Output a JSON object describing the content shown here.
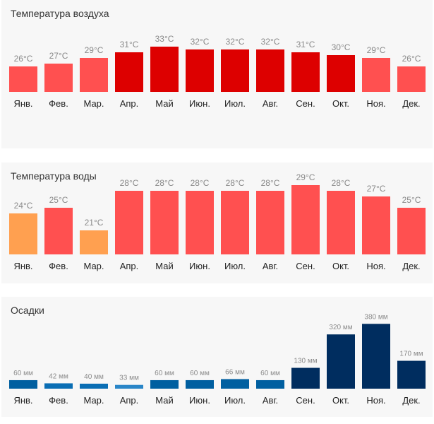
{
  "chart_data": [
    {
      "type": "bar",
      "title": "Температура воздуха",
      "categories": [
        "Янв.",
        "Фев.",
        "Мар.",
        "Апр.",
        "Май",
        "Июн.",
        "Июл.",
        "Авг.",
        "Сен.",
        "Окт.",
        "Ноя.",
        "Дек."
      ],
      "values": [
        26,
        27,
        29,
        31,
        33,
        32,
        32,
        32,
        31,
        30,
        29,
        26
      ],
      "labels": [
        "26°C",
        "27°C",
        "29°C",
        "31°C",
        "33°C",
        "32°C",
        "32°C",
        "32°C",
        "31°C",
        "30°C",
        "29°C",
        "26°C"
      ],
      "unit": "°C",
      "colors": [
        "#ff5050",
        "#ff5050",
        "#ff5050",
        "#dd0000",
        "#dd0000",
        "#dd0000",
        "#dd0000",
        "#dd0000",
        "#dd0000",
        "#dd0000",
        "#ff5050",
        "#ff5050"
      ]
    },
    {
      "type": "bar",
      "title": "Температура воды",
      "categories": [
        "Янв.",
        "Фев.",
        "Мар.",
        "Апр.",
        "Май",
        "Июн.",
        "Июл.",
        "Авг.",
        "Сен.",
        "Окт.",
        "Ноя.",
        "Дек."
      ],
      "values": [
        24,
        25,
        21,
        28,
        28,
        28,
        28,
        28,
        29,
        28,
        27,
        25
      ],
      "labels": [
        "24°C",
        "25°C",
        "21°C",
        "28°C",
        "28°C",
        "28°C",
        "28°C",
        "28°C",
        "29°C",
        "28°C",
        "27°C",
        "25°C"
      ],
      "unit": "°C",
      "colors": [
        "#ffa050",
        "#ff5050",
        "#ffa050",
        "#ff5050",
        "#ff5050",
        "#ff5050",
        "#ff5050",
        "#ff5050",
        "#ff5050",
        "#ff5050",
        "#ff5050",
        "#ff5050"
      ]
    },
    {
      "type": "bar",
      "title": "Осадки",
      "categories": [
        "Янв.",
        "Фев.",
        "Мар.",
        "Апр.",
        "Май",
        "Июн.",
        "Июл.",
        "Авг.",
        "Сен.",
        "Окт.",
        "Ноя.",
        "Дек."
      ],
      "values": [
        60,
        42,
        40,
        33,
        60,
        60,
        66,
        60,
        130,
        320,
        380,
        170
      ],
      "labels": [
        "60 мм",
        "42 мм",
        "40 мм",
        "33 мм",
        "60 мм",
        "60 мм",
        "66 мм",
        "60 мм",
        "130 мм",
        "320 мм",
        "380 мм",
        "170 мм"
      ],
      "unit": "мм",
      "colors": [
        "#005fa0",
        "#0a6eb4",
        "#0a6eb4",
        "#2a86c8",
        "#005fa0",
        "#005fa0",
        "#005fa0",
        "#005fa0",
        "#002d5f",
        "#002d5f",
        "#002d5f",
        "#002d5f"
      ]
    }
  ]
}
